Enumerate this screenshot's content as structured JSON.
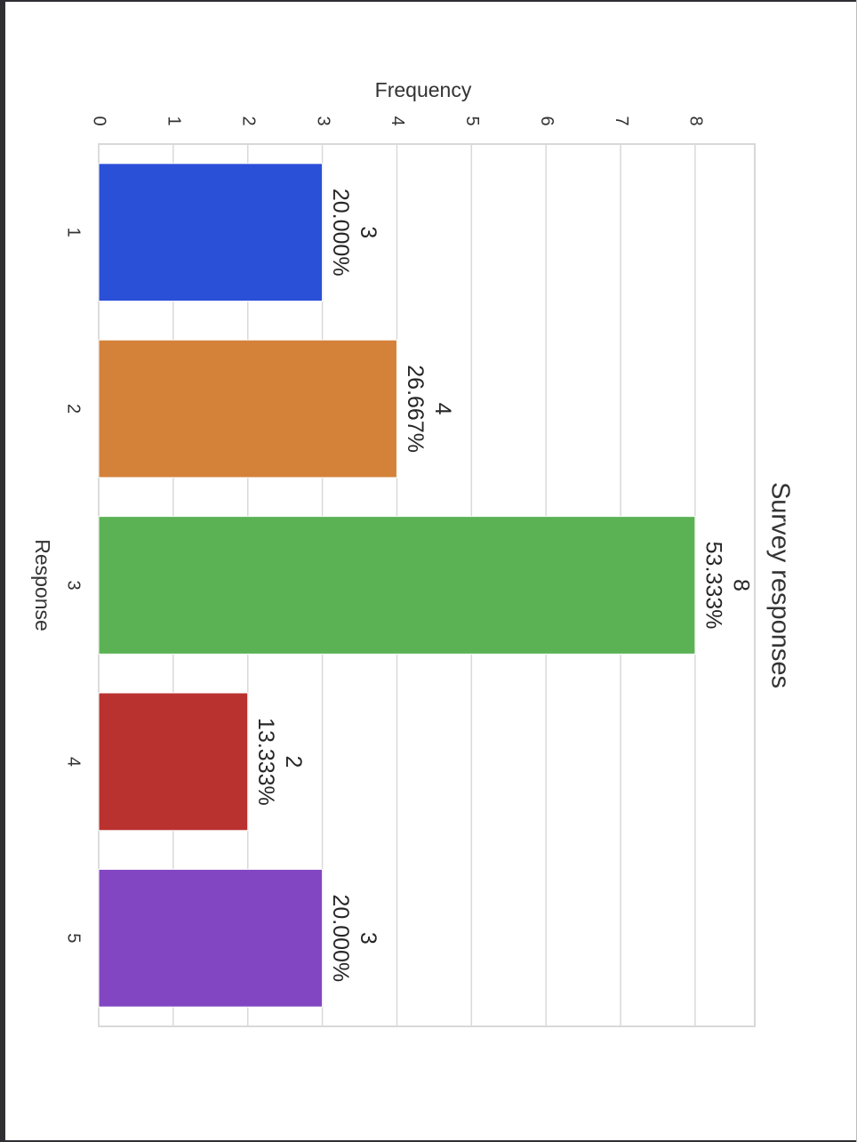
{
  "chart_data": {
    "type": "bar",
    "orientation": "rotated-90",
    "title": "Survey responses",
    "xlabel": "Response",
    "ylabel": "Frequency",
    "categories": [
      "1",
      "2",
      "3",
      "4",
      "5"
    ],
    "values": [
      3,
      4,
      8,
      2,
      3
    ],
    "percent_labels": [
      "20.000%",
      "26.667%",
      "53.333%",
      "13.333%",
      "20.000%"
    ],
    "colors": [
      "#2b50d8",
      "#d4823a",
      "#5bb255",
      "#ba3230",
      "#8246c2"
    ],
    "ylim": [
      0,
      8.8
    ],
    "yticks": [
      "0",
      "1",
      "2",
      "3",
      "4",
      "5",
      "6",
      "7",
      "8"
    ],
    "grid": true,
    "legend": "none"
  }
}
